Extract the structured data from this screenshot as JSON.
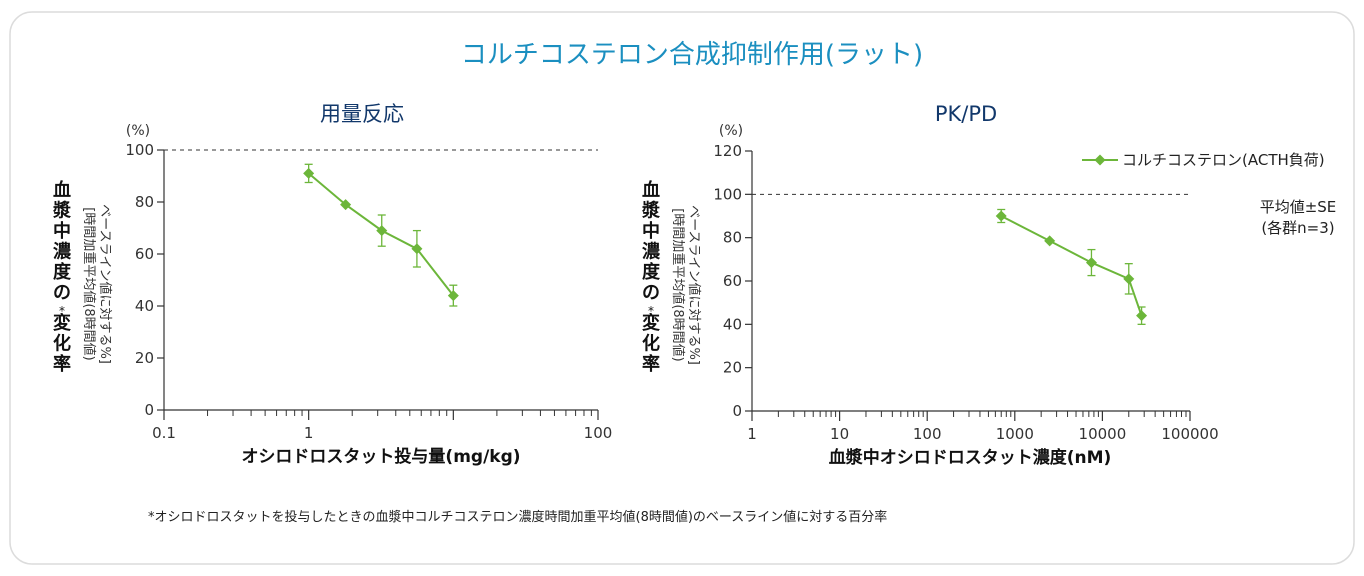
{
  "title": "コルチコステロン合成抑制作用(ラット)",
  "footnote": "*オシロドロスタットを投与したときの血漿中コルチコステロン濃度時間加重平均値(8時間値)のベースライン値に対する百分率",
  "colors": {
    "title": "#1b8fc0",
    "subtitle": "#12386b",
    "series": "#6cb63a",
    "axis": "#333333",
    "card_border": "#dcdcdc"
  },
  "chart_data": [
    {
      "type": "line",
      "title": "用量反応",
      "xlabel": "オシロドロスタット投与量(mg/kg)",
      "ylabel_main": [
        "血",
        "漿",
        "中",
        "濃",
        "度",
        "の",
        "変",
        "化",
        "率"
      ],
      "ylabel_star": "*",
      "ylabel_sub1": "[時間加重平均値(8時間値)",
      "ylabel_sub2": "ベースライン値に対する%]",
      "y_unit": "(%)",
      "x_scale": "log",
      "xlim": [
        0.1,
        100
      ],
      "ylim": [
        0,
        100
      ],
      "x_ticks": [
        0.1,
        1,
        100
      ],
      "x_tick_labels": [
        "0.1",
        "1",
        "100"
      ],
      "y_ticks": [
        0,
        20,
        40,
        60,
        80,
        100
      ],
      "y_tick_labels": [
        "0",
        "20",
        "40",
        "60",
        "80",
        "100"
      ],
      "reference_line": 100,
      "grid": false,
      "series": [
        {
          "x": [
            1,
            1.8,
            3.2,
            5.6,
            10
          ],
          "y": [
            91,
            79,
            69,
            62,
            44
          ],
          "err": [
            3.5,
            0,
            6,
            7,
            4
          ]
        }
      ]
    },
    {
      "type": "line",
      "title": "PK/PD",
      "xlabel": "血漿中オシロドロスタット濃度(nM)",
      "ylabel_main": [
        "血",
        "漿",
        "中",
        "濃",
        "度",
        "の",
        "変",
        "化",
        "率"
      ],
      "ylabel_star": "*",
      "ylabel_sub1": "[時間加重平均値(8時間値)",
      "ylabel_sub2": "ベースライン値に対する%]",
      "y_unit": "(%)",
      "x_scale": "log",
      "xlim": [
        1,
        100000
      ],
      "ylim": [
        0,
        120
      ],
      "x_ticks": [
        1,
        10,
        100,
        1000,
        10000,
        100000
      ],
      "x_tick_labels": [
        "1",
        "10",
        "100",
        "1000",
        "10000",
        "100000"
      ],
      "y_ticks": [
        0,
        20,
        40,
        60,
        80,
        100,
        120
      ],
      "y_tick_labels": [
        "0",
        "20",
        "40",
        "60",
        "80",
        "100",
        "120"
      ],
      "reference_line": 100,
      "grid": false,
      "legend": "top-right",
      "series": [
        {
          "name": "コルチコステロン(ACTH負荷)",
          "x": [
            700,
            2500,
            7500,
            20000,
            28000
          ],
          "y": [
            90,
            78.5,
            68.5,
            61,
            44
          ],
          "err": [
            3,
            0,
            6,
            7,
            4
          ]
        }
      ],
      "annotation_lines": [
        "平均値±SE",
        "(各群n=3)"
      ]
    }
  ]
}
